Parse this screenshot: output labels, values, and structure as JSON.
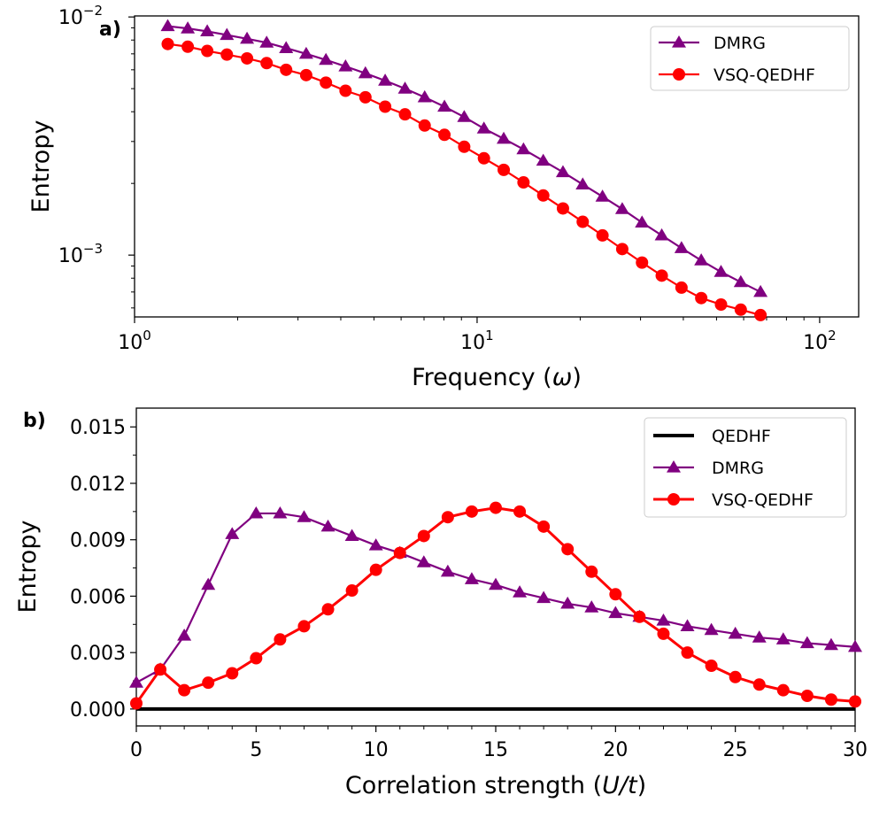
{
  "chart_data": [
    {
      "type": "line",
      "panel_label": "a)",
      "xlabel": "Frequency (ω)",
      "ylabel": "Entropy",
      "xscale": "log",
      "yscale": "log",
      "xlim": [
        1,
        130
      ],
      "ylim": [
        0.00055,
        0.0101
      ],
      "xticks": [
        {
          "value": 1,
          "base": "10",
          "exp": "0"
        },
        {
          "value": 10,
          "base": "10",
          "exp": "1"
        },
        {
          "value": 100,
          "base": "10",
          "exp": "2"
        }
      ],
      "yticks": [
        {
          "value": 0.001,
          "base": "10",
          "exp": "−3"
        },
        {
          "value": 0.01,
          "base": "10",
          "exp": "−2"
        }
      ],
      "grid": false,
      "legend_position": "top-right",
      "x": [
        1.25,
        1.43,
        1.63,
        1.86,
        2.13,
        2.43,
        2.77,
        3.17,
        3.62,
        4.13,
        4.72,
        5.39,
        6.16,
        7.03,
        8.03,
        9.17,
        10.47,
        11.96,
        13.66,
        15.6,
        17.81,
        20.34,
        23.23,
        26.53,
        30.3,
        34.6,
        39.51,
        45.12,
        51.53,
        58.85,
        67.2
      ],
      "series": [
        {
          "name": "DMRG",
          "color": "#800080",
          "marker": "triangle",
          "values": [
            0.00915,
            0.00895,
            0.0087,
            0.0084,
            0.0081,
            0.0078,
            0.0074,
            0.007,
            0.0066,
            0.0062,
            0.0058,
            0.0054,
            0.005,
            0.0046,
            0.0042,
            0.0038,
            0.0034,
            0.00308,
            0.00278,
            0.00249,
            0.00223,
            0.00198,
            0.00176,
            0.00156,
            0.00137,
            0.00121,
            0.00107,
            0.00095,
            0.00085,
            0.00077,
            0.0007
          ]
        },
        {
          "name": "VSQ-QEDHF",
          "color": "#ff0000",
          "marker": "circle",
          "values": [
            0.0077,
            0.0075,
            0.0072,
            0.00695,
            0.0067,
            0.0064,
            0.006,
            0.0057,
            0.0053,
            0.0049,
            0.0046,
            0.0042,
            0.0039,
            0.0035,
            0.0032,
            0.00285,
            0.00255,
            0.00228,
            0.00202,
            0.00178,
            0.00157,
            0.00138,
            0.00121,
            0.00106,
            0.00093,
            0.00082,
            0.00073,
            0.00066,
            0.00062,
            0.00059,
            0.00056
          ]
        }
      ]
    },
    {
      "type": "line",
      "panel_label": "b)",
      "xlabel": "Correlation strength (U/t)",
      "ylabel": "Entropy",
      "xscale": "linear",
      "yscale": "linear",
      "xlim": [
        0,
        30
      ],
      "ylim": [
        -0.0009,
        0.016
      ],
      "xticks": [
        "0",
        "5",
        "10",
        "15",
        "20",
        "25",
        "30"
      ],
      "yticks": [
        "0.000",
        "0.003",
        "0.006",
        "0.009",
        "0.012",
        "0.015"
      ],
      "grid": false,
      "legend_position": "top-right",
      "x": [
        0,
        1,
        2,
        3,
        4,
        5,
        6,
        7,
        8,
        9,
        10,
        11,
        12,
        13,
        14,
        15,
        16,
        17,
        18,
        19,
        20,
        21,
        22,
        23,
        24,
        25,
        26,
        27,
        28,
        29,
        30
      ],
      "series": [
        {
          "name": "QEDHF",
          "color": "#000000",
          "marker": "none",
          "values": [
            0,
            0,
            0,
            0,
            0,
            0,
            0,
            0,
            0,
            0,
            0,
            0,
            0,
            0,
            0,
            0,
            0,
            0,
            0,
            0,
            0,
            0,
            0,
            0,
            0,
            0,
            0,
            0,
            0,
            0,
            0
          ]
        },
        {
          "name": "DMRG",
          "color": "#800080",
          "marker": "triangle",
          "values": [
            0.0014,
            0.0021,
            0.0039,
            0.0066,
            0.0093,
            0.0104,
            0.0104,
            0.0102,
            0.0097,
            0.0092,
            0.0087,
            0.0083,
            0.0078,
            0.0073,
            0.0069,
            0.0066,
            0.0062,
            0.0059,
            0.0056,
            0.0054,
            0.0051,
            0.0049,
            0.0047,
            0.0044,
            0.0042,
            0.004,
            0.0038,
            0.0037,
            0.0035,
            0.0034,
            0.0033
          ]
        },
        {
          "name": "VSQ-QEDHF",
          "color": "#ff0000",
          "marker": "circle",
          "values": [
            0.0003,
            0.0021,
            0.001,
            0.0014,
            0.0019,
            0.0027,
            0.0037,
            0.0044,
            0.0053,
            0.0063,
            0.0074,
            0.0083,
            0.0092,
            0.0102,
            0.0105,
            0.0107,
            0.0105,
            0.0097,
            0.0085,
            0.0073,
            0.0061,
            0.0049,
            0.004,
            0.003,
            0.0023,
            0.0017,
            0.0013,
            0.001,
            0.0007,
            0.0005,
            0.0004
          ]
        }
      ]
    }
  ]
}
